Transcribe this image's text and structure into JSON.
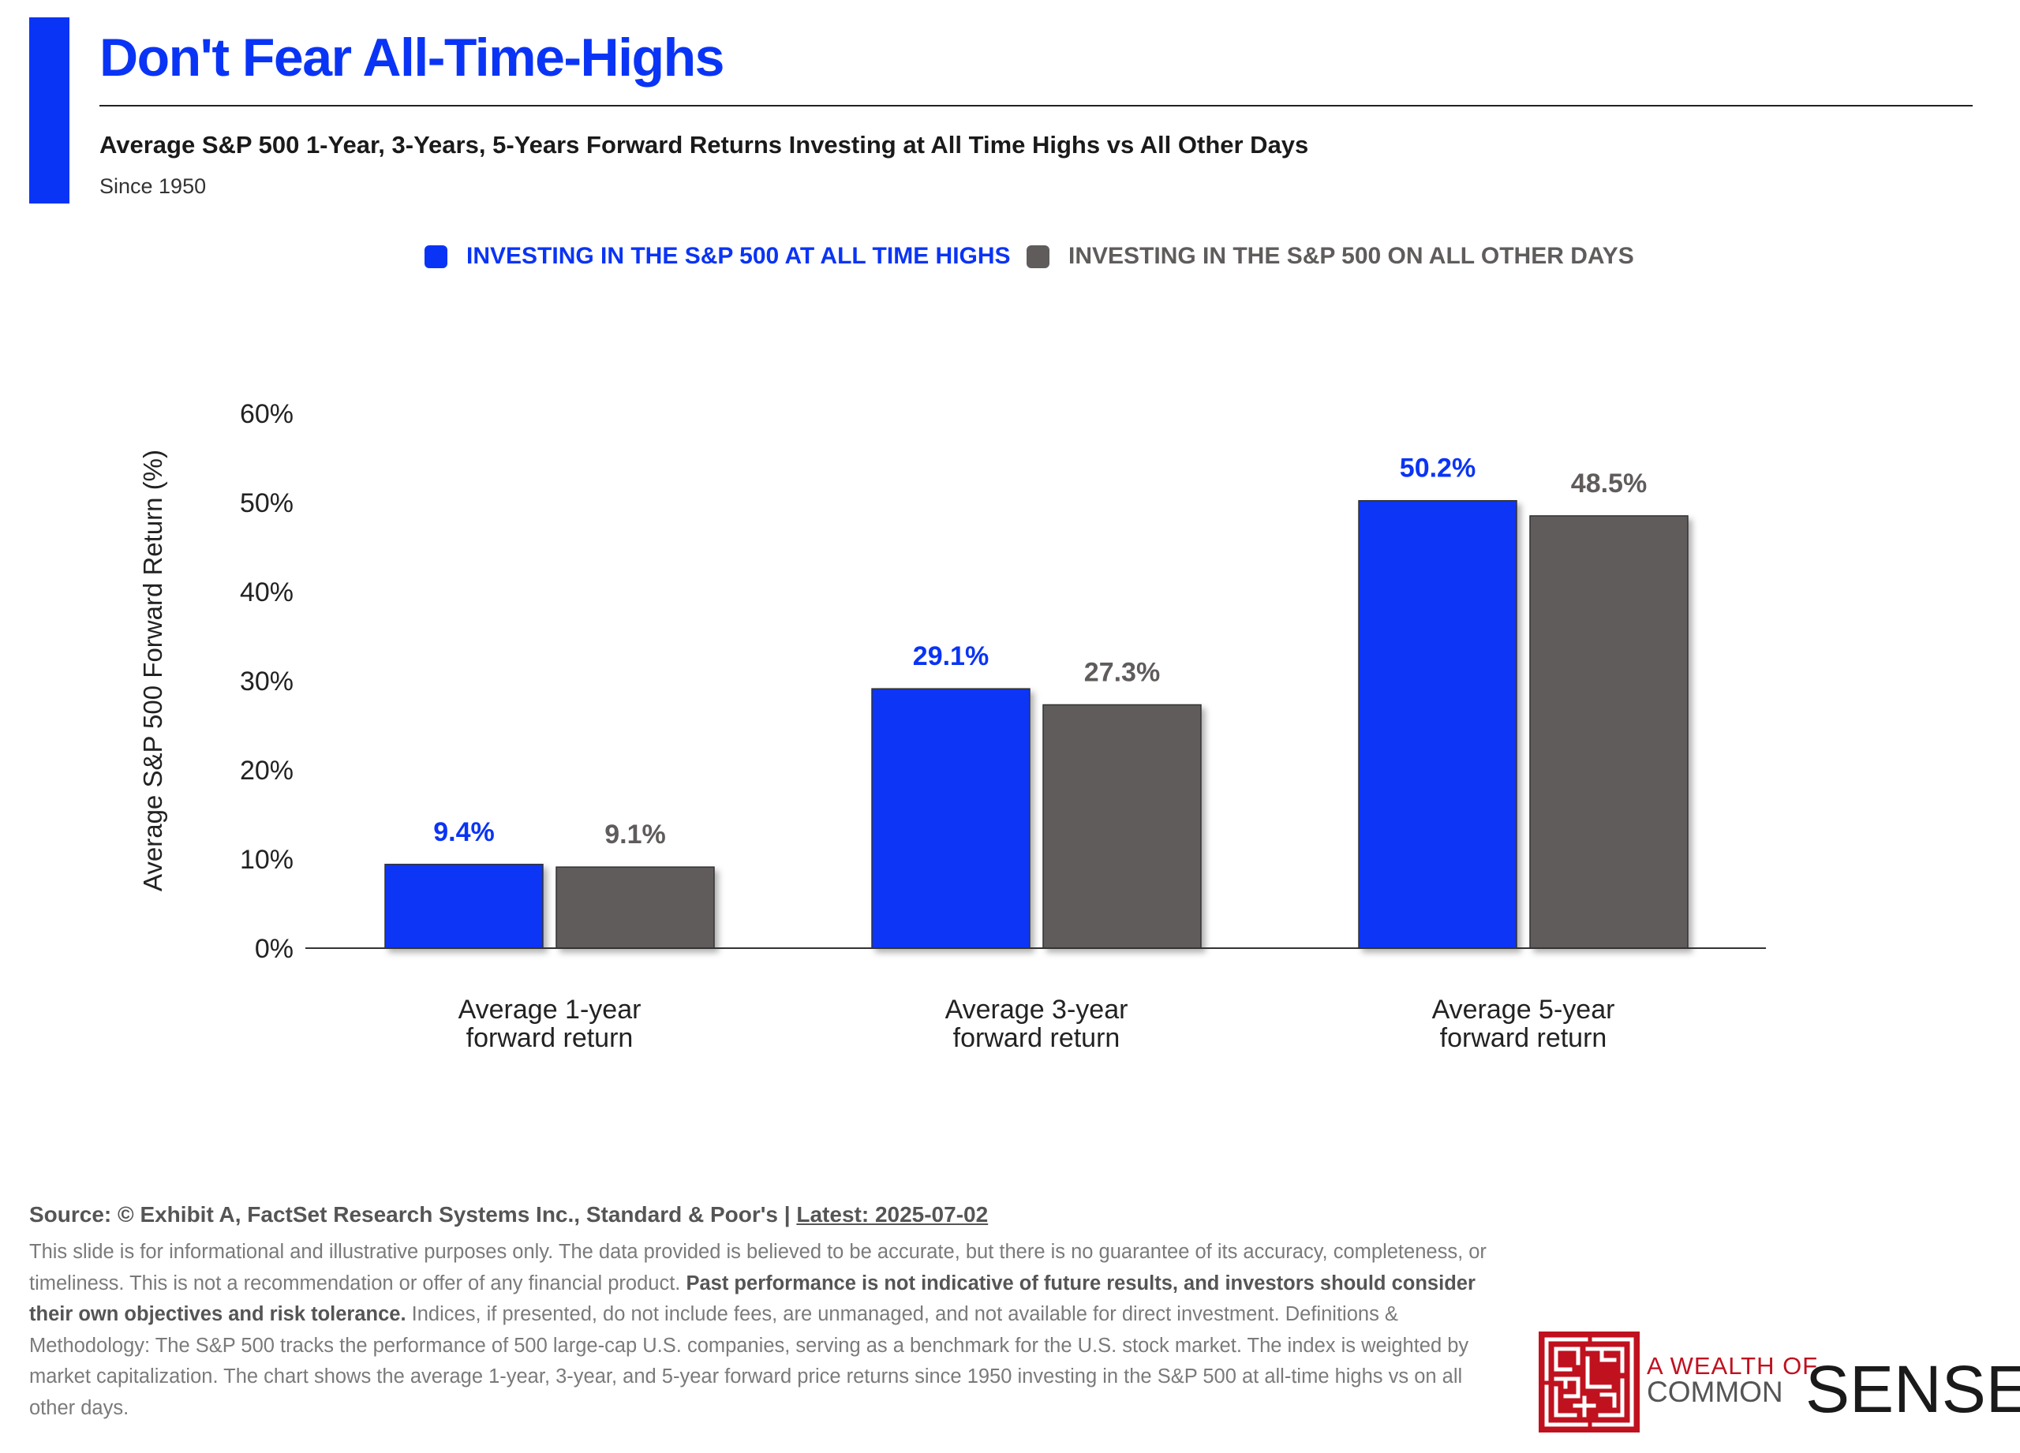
{
  "header": {
    "title": "Don't Fear All-Time-Highs",
    "subtitle": "Average S&P 500 1-Year, 3-Years, 5-Years Forward Returns Investing at All Time Highs vs All Other Days",
    "since": "Since 1950"
  },
  "colors": {
    "accent": "#0a34f5",
    "series_ath": "#0a34f5",
    "series_other": "#605c5c"
  },
  "chart_data": {
    "type": "bar",
    "categories": [
      "Average 1-year forward return",
      "Average 3-year forward return",
      "Average 5-year forward return"
    ],
    "series": [
      {
        "name": "INVESTING IN THE S&P 500 AT ALL TIME HIGHS",
        "values": [
          9.4,
          29.1,
          50.2
        ],
        "labels": [
          "9.4%",
          "29.1%",
          "50.2%"
        ]
      },
      {
        "name": "INVESTING IN THE S&P 500 ON ALL OTHER DAYS",
        "values": [
          9.1,
          27.3,
          48.5
        ],
        "labels": [
          "9.1%",
          "27.3%",
          "48.5%"
        ]
      }
    ],
    "ylabel": "Average S&P 500 Forward Return (%)",
    "xlabel": "",
    "ylim": [
      0,
      60
    ],
    "yticks": [
      0,
      10,
      20,
      30,
      40,
      50,
      60
    ],
    "ytick_labels": [
      "0%",
      "10%",
      "20%",
      "30%",
      "40%",
      "50%",
      "60%"
    ],
    "grid": false,
    "legend_position": "top-center"
  },
  "footer": {
    "source": "Source: © Exhibit A, FactSet Research Systems Inc., Standard & Poor's | ",
    "latest": "Latest: 2025-07-02",
    "disclaimer_1": "This slide is for informational and illustrative purposes only. The data provided is believed to be accurate, but there is no guarantee of its accuracy, completeness, or timeliness. This is not a recommendation or offer of any financial product. ",
    "disclaimer_bold": "Past performance is not indicative of future results, and investors should consider their own objectives and risk tolerance.",
    "disclaimer_2": " Indices, if presented, do not include fees, are unmanaged, and not available for direct investment. Definitions & Methodology: The S&P 500 tracks the performance of 500 large-cap U.S. companies, serving as a benchmark for the U.S. stock market. The index is weighted by market capitalization. The chart shows the average 1-year, 3-year, and 5-year forward price returns since 1950 investing in the S&P 500 at all-time highs vs on all other days."
  },
  "logo": {
    "line1": "A WEALTH OF",
    "line2": "COMMON",
    "line3": "SENSE"
  }
}
